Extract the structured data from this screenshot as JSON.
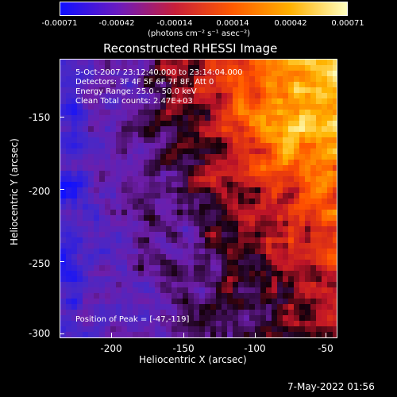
{
  "colorbar": {
    "tick_labels": [
      "-0.00071",
      "-0.00042",
      "-0.00014",
      "0.00014",
      "0.00042",
      "0.00071"
    ],
    "units": "(photons cm⁻² s⁻¹ asec⁻²)",
    "colors": [
      "#1010ff",
      "#6a1bc0",
      "#c81f3a",
      "#ff5a00",
      "#ffb000",
      "#ffffc0"
    ]
  },
  "title": "Reconstructed RHESSI Image",
  "info": {
    "line1": "5-Oct-2007 23:12:40.000 to 23:14:04.000",
    "line2": "Detectors: 3F 4F 5F 6F 7F 8F, Att 0",
    "line3": "Energy Range: 25.0 - 50.0 keV",
    "line4": "Clean     Total counts: 2.47E+03",
    "peak": "Position of Peak = [-47,-119]"
  },
  "axes": {
    "xlabel": "Heliocentric X (arcsec)",
    "ylabel": "Heliocentric Y (arcsec)",
    "x_ticks": [
      "-200",
      "-150",
      "-100",
      "-50"
    ],
    "y_ticks": [
      "-150",
      "-200",
      "-250",
      "-300"
    ],
    "xlim": [
      -232,
      -42
    ],
    "ylim": [
      -303,
      -112
    ]
  },
  "timestamp": "7-May-2022 01:56"
}
